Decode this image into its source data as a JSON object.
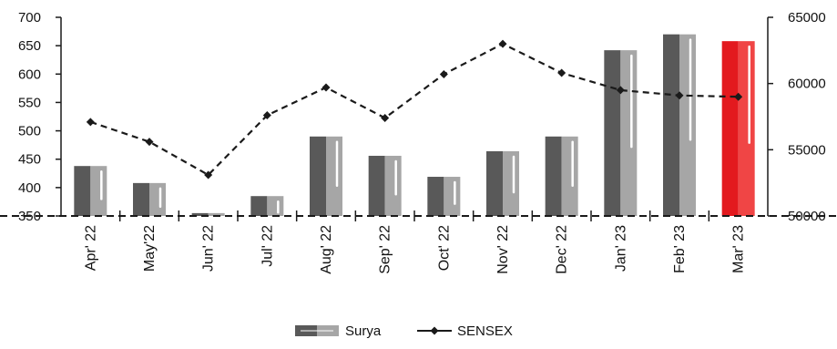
{
  "chart_data": {
    "type": "bar",
    "categories": [
      "Apr' 22",
      "May'22",
      "Jun' 22",
      "Jul' 22",
      "Aug' 22",
      "Sep' 22",
      "Oct' 22",
      "Nov' 22",
      "Dec' 22",
      "Jan' 23",
      "Feb' 23",
      "Mar' 23"
    ],
    "series": [
      {
        "name": "Surya",
        "type": "bar",
        "axis": "left",
        "values": [
          438,
          408,
          355,
          385,
          490,
          456,
          419,
          464,
          490,
          642,
          670,
          658
        ]
      },
      {
        "name": "SENSEX",
        "type": "line",
        "axis": "right",
        "line_style": "dashed",
        "marker": "diamond",
        "values": [
          57100,
          55600,
          53100,
          57600,
          59700,
          57400,
          60700,
          63000,
          60800,
          59500,
          59100,
          59000
        ]
      }
    ],
    "y_left": {
      "ylim": [
        350,
        700
      ],
      "ticks": [
        350,
        400,
        450,
        500,
        550,
        600,
        650,
        700
      ]
    },
    "y_right": {
      "ylim": [
        50000,
        65000
      ],
      "ticks": [
        50000,
        55000,
        60000,
        65000
      ]
    },
    "highlight_category": "Mar' 23",
    "legend_position": "bottom-center",
    "grid": false,
    "colors": {
      "bar_dark": "#595959",
      "bar_light": "#a6a6a6",
      "highlight_dark": "#e3191e",
      "highlight_light": "#f04545",
      "line": "#1a1a1a",
      "axis": "#1a1a1a"
    }
  }
}
